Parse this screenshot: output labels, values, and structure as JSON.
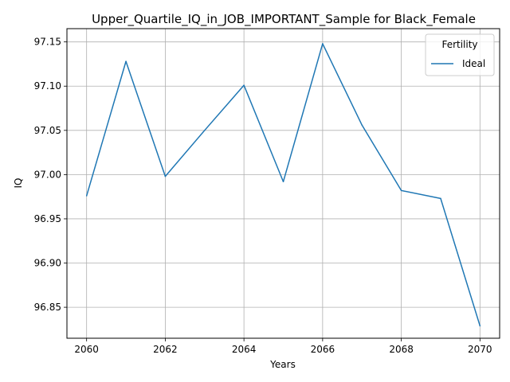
{
  "chart_data": {
    "type": "line",
    "title": "Upper_Quartile_IQ_in_JOB_IMPORTANT_Sample for Black_Female",
    "xlabel": "Years",
    "ylabel": "IQ",
    "xlim": [
      2059.5,
      2070.5
    ],
    "ylim": [
      96.815,
      97.165
    ],
    "x_ticks": [
      2060,
      2062,
      2064,
      2066,
      2068,
      2070
    ],
    "y_ticks": [
      96.85,
      96.9,
      96.95,
      97.0,
      97.05,
      97.1,
      97.15
    ],
    "grid": true,
    "legend": {
      "title": "Fertility",
      "placement": "top-right"
    },
    "series": [
      {
        "name": "Ideal",
        "color": "#1f77b4",
        "x": [
          2060,
          2061,
          2062,
          2063,
          2064,
          2065,
          2066,
          2067,
          2068,
          2069,
          2070
        ],
        "y": [
          96.976,
          97.128,
          96.998,
          97.05,
          97.101,
          96.992,
          97.148,
          97.056,
          96.982,
          96.973,
          96.829
        ]
      }
    ]
  }
}
